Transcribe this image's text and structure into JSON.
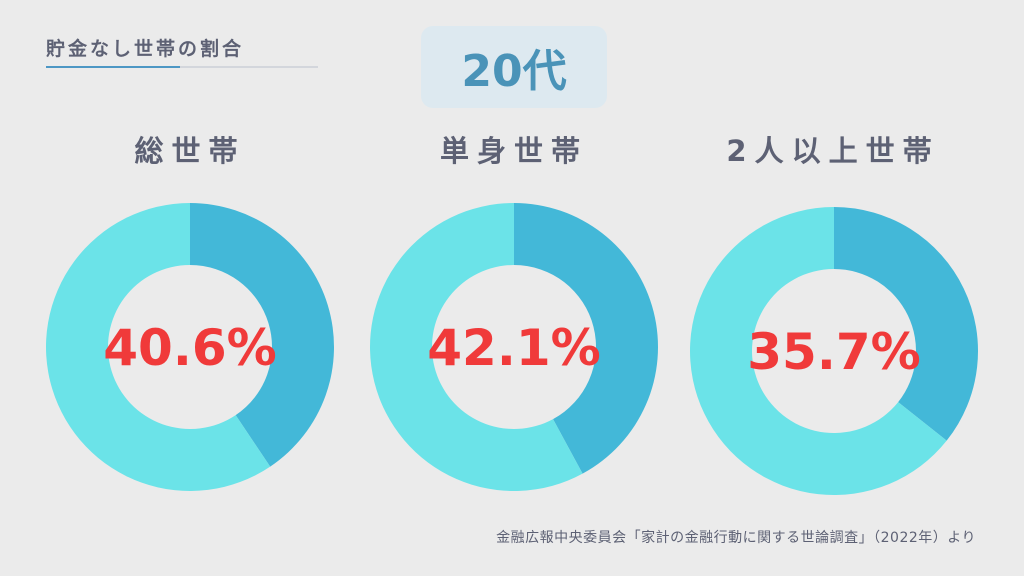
{
  "header": {
    "title": "貯金なし世帯の割合"
  },
  "age_group": "20代",
  "source": "金融広報中央委員会「家計の金融行動に関する世論調査」（2022年）より",
  "colors": {
    "share": "#43b8d8",
    "rest": "#6be3e8",
    "value_text": "#f03a3a"
  },
  "chart_data": [
    {
      "type": "pie",
      "title": "総世帯",
      "values": [
        40.6,
        59.4
      ],
      "value_label": "40.6%"
    },
    {
      "type": "pie",
      "title": "単身世帯",
      "values": [
        42.1,
        57.9
      ],
      "value_label": "42.1%"
    },
    {
      "type": "pie",
      "title": "2人以上世帯",
      "values": [
        35.7,
        64.3
      ],
      "value_label": "35.7%"
    }
  ]
}
